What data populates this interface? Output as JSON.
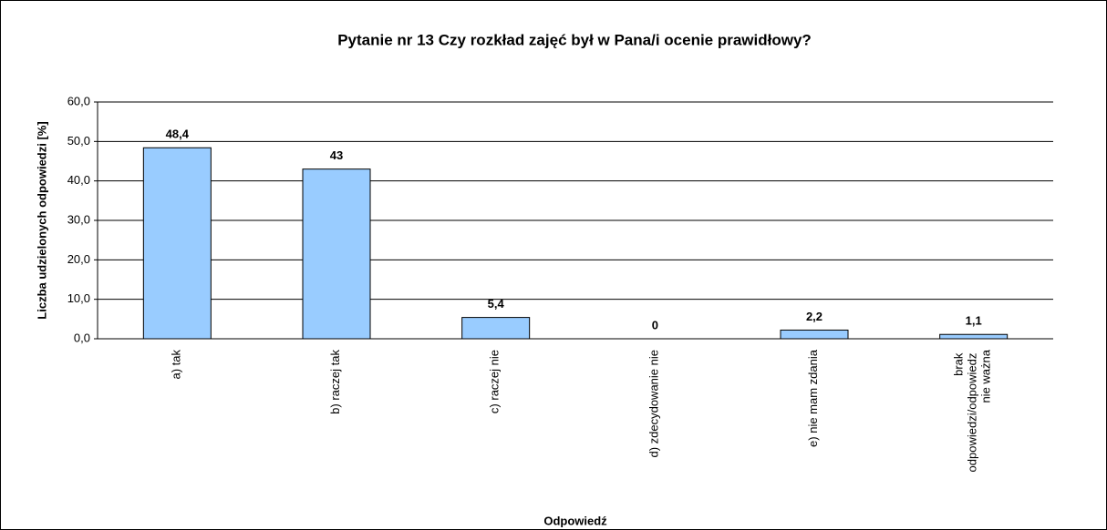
{
  "chart_data": {
    "type": "bar",
    "title": "Pytanie nr 13 Czy rozkład zajęć był w Pana/i ocenie prawidłowy?",
    "x_label": "Odpowiedź",
    "y_label": "Liczba udzielonych odpowiedzi [%]",
    "categories": [
      "a) tak",
      "b) raczej tak",
      "c) raczej nie",
      "d) zdecydowanie nie",
      "e) nie mam zdania",
      "brak odpowiedzi/odpowiedz nie ważna"
    ],
    "values": [
      48.4,
      43,
      5.4,
      0,
      2.2,
      1.1
    ],
    "value_labels": [
      "48,4",
      "43",
      "5,4",
      "0",
      "2,2",
      "1,1"
    ],
    "color": "#99ccff",
    "ylim": [
      0,
      60
    ],
    "yticks": [
      {
        "value": 0,
        "label": "0,0"
      },
      {
        "value": 10,
        "label": "10,0"
      },
      {
        "value": 20,
        "label": "20,0"
      },
      {
        "value": 30,
        "label": "30,0"
      },
      {
        "value": 40,
        "label": "40,0"
      },
      {
        "value": 50,
        "label": "50,0"
      },
      {
        "value": 60,
        "label": "60,0"
      }
    ],
    "grid": true
  }
}
